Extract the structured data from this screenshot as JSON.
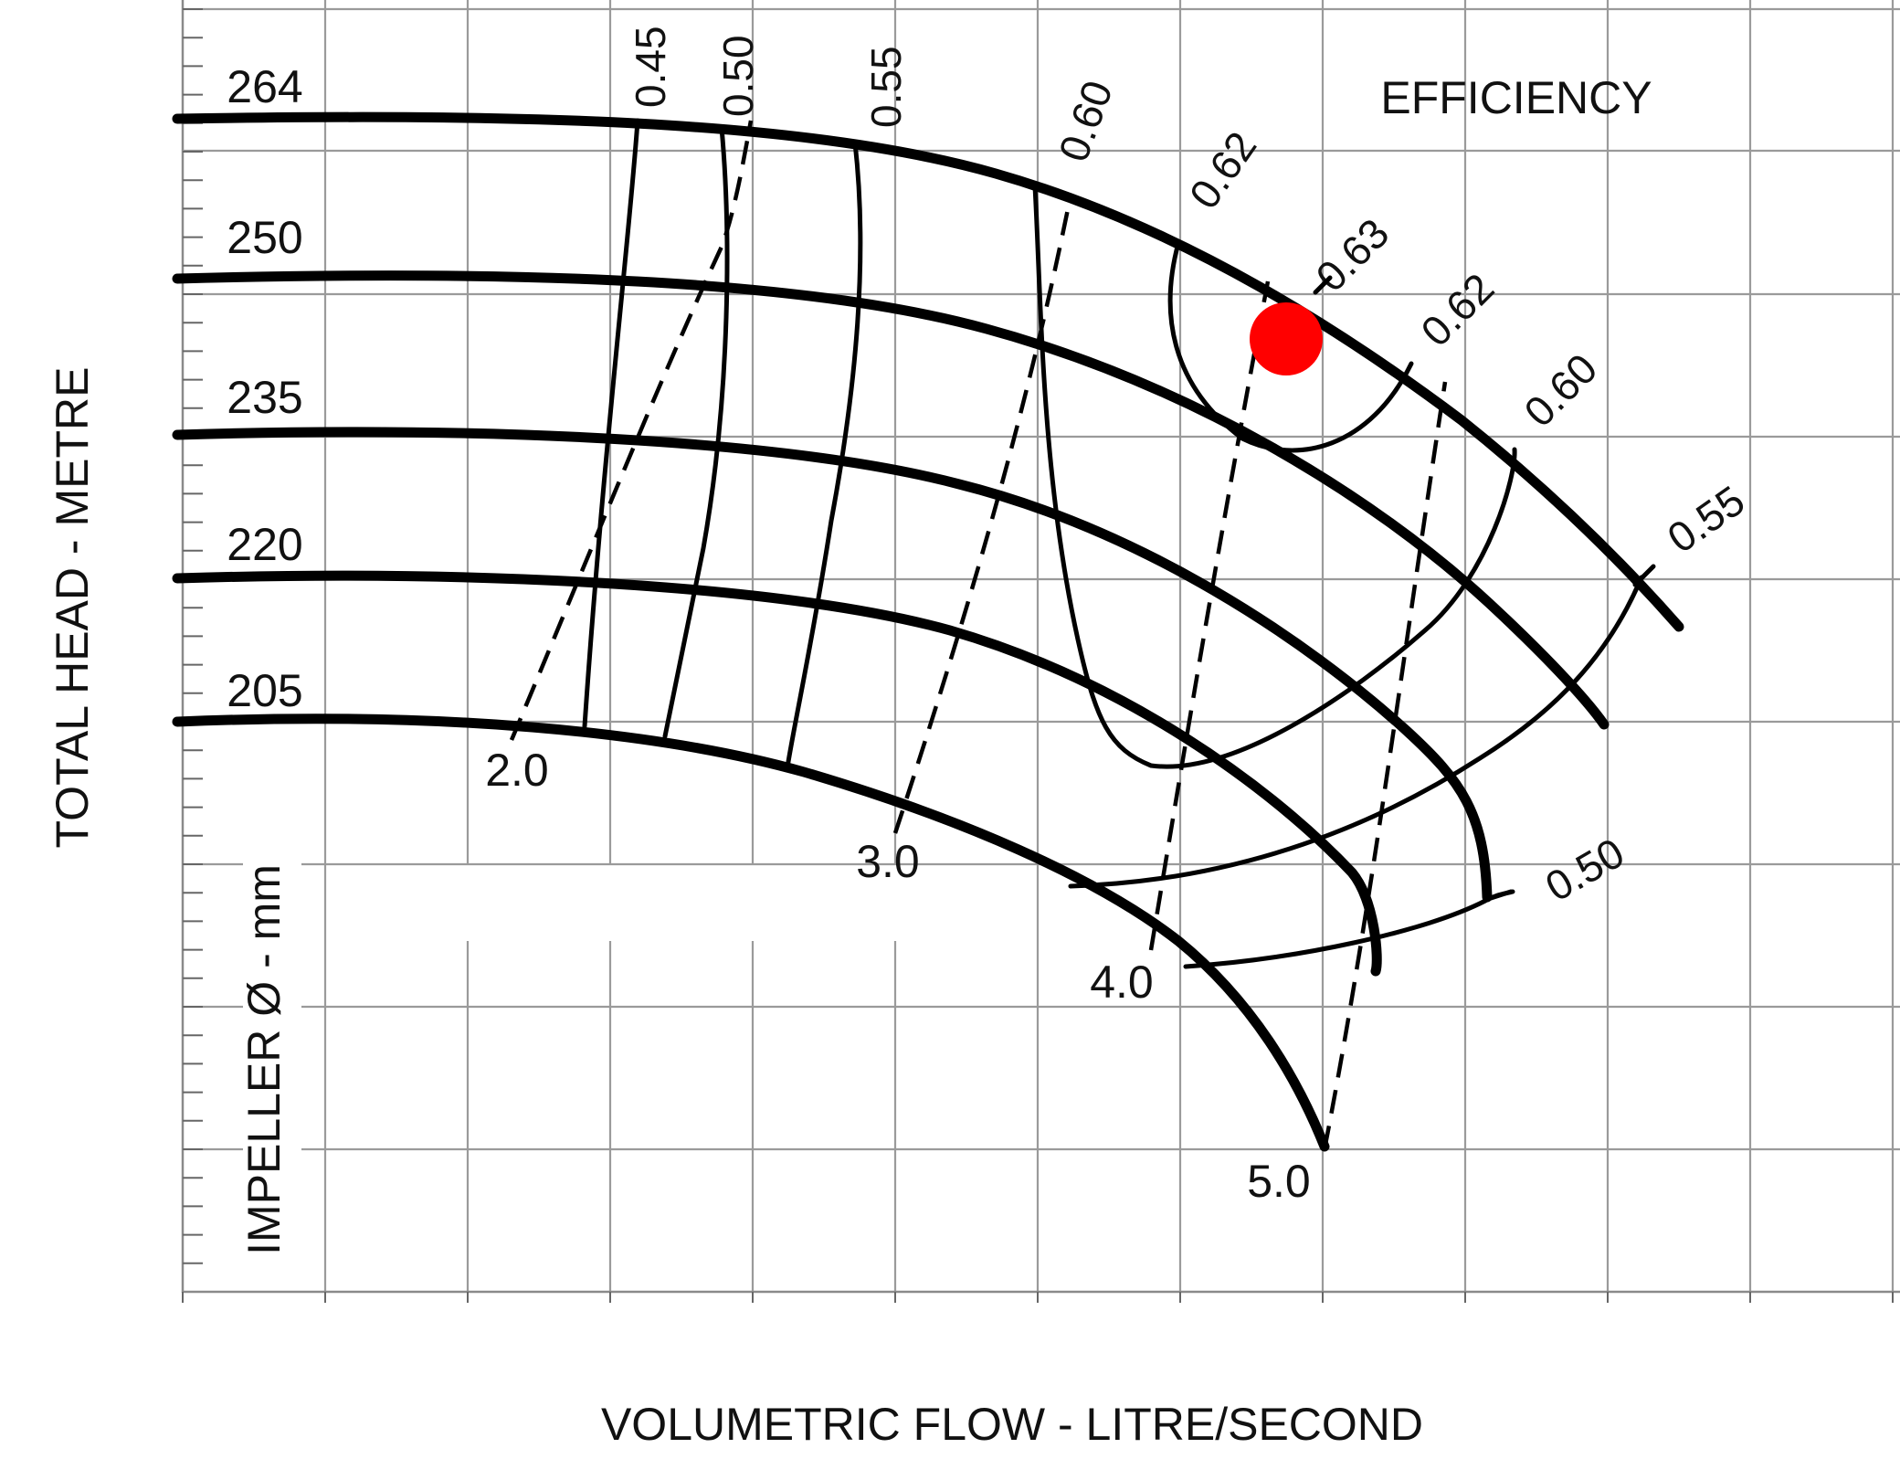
{
  "chart_data": {
    "type": "line",
    "title": "",
    "xlabel": "VOLUMETRIC FLOW - LITRE/SECOND",
    "ylabel": "TOTAL HEAD - METRE",
    "secondary_label": "IMPELLER Ø - mm",
    "efficiency_title": "EFFICIENCY",
    "grid": true,
    "impeller_curves": [
      {
        "name": "264"
      },
      {
        "name": "250"
      },
      {
        "name": "235"
      },
      {
        "name": "220"
      },
      {
        "name": "205"
      }
    ],
    "efficiency_contours": [
      {
        "name": "0.45"
      },
      {
        "name": "0.50"
      },
      {
        "name": "0.55"
      },
      {
        "name": "0.60"
      },
      {
        "name": "0.62"
      },
      {
        "name": "0.63"
      },
      {
        "name": "0.62"
      },
      {
        "name": "0.60"
      },
      {
        "name": "0.55"
      },
      {
        "name": "0.50"
      }
    ],
    "npsh_curves": [
      {
        "name": "2.0"
      },
      {
        "name": "3.0"
      },
      {
        "name": "4.0"
      },
      {
        "name": "5.0"
      }
    ],
    "highlight_point": {
      "color": "#ff0000",
      "near": "0.63"
    }
  }
}
